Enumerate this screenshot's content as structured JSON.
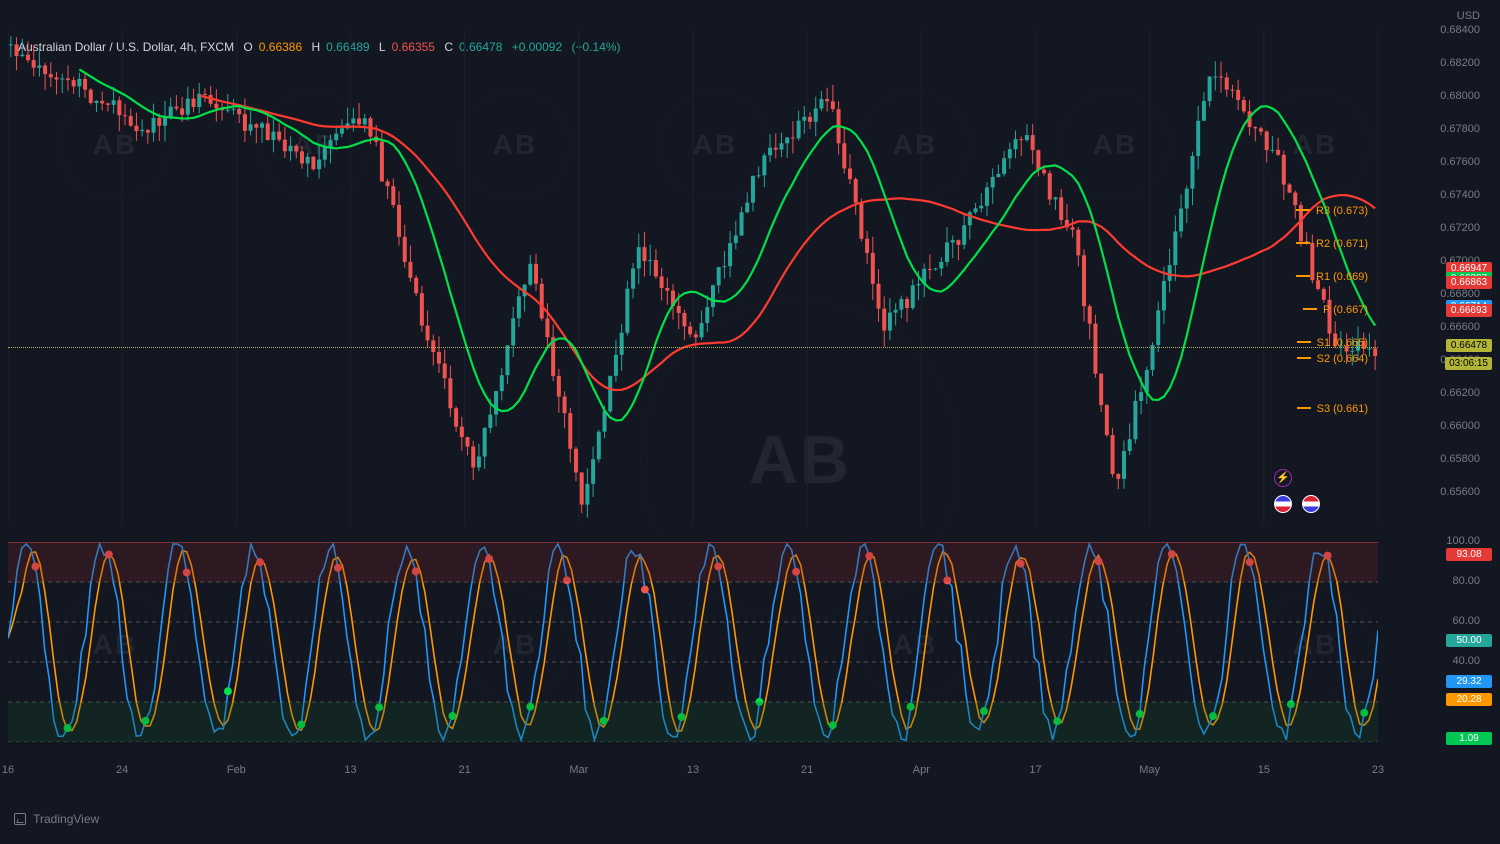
{
  "header": {
    "symbol_title": "Australian Dollar / U.S. Dollar, 4h, FXCM",
    "o_label": "O",
    "o_value": "0.66386",
    "h_label": "H",
    "h_value": "0.66489",
    "l_label": "L",
    "l_value": "0.66355",
    "c_label": "C",
    "c_value": "0.66478",
    "chg_value": "+0.00092",
    "chg_pct": "(+0.14%)"
  },
  "watermark": {
    "text": "TradingView"
  },
  "background_color": "#131722",
  "watermark_badge_text": "AB",
  "price_chart": {
    "type": "candlestick",
    "ylim": [
      0.654,
      0.684
    ],
    "ytick_step": 0.002,
    "currency": "USD",
    "grid_color": "#1c2030",
    "up_color": "#26a69a",
    "down_color": "#ef5350",
    "wick_up_color": "#26a69a",
    "wick_down_color": "#ef5350",
    "ma1_color": "#ff3b30",
    "ma1_width": 2.2,
    "ma2_color": "#00e04a",
    "ma2_width": 2.2,
    "yellow_line_value": 0.66478,
    "yellow_line_color": "#b2b536",
    "countdown": "03:06:15",
    "bar_seed": 1234567,
    "bar_count": 240,
    "price_tags": [
      {
        "value": "0.66947",
        "bg": "#e53935"
      },
      {
        "value": "0.66887",
        "bg": "#00c853"
      },
      {
        "value": "0.66863",
        "bg": "#e53935"
      },
      {
        "value": "0.66714",
        "bg": "#ff9800"
      },
      {
        "value": "0.66714",
        "bg": "#2196f3"
      },
      {
        "value": "0.66693",
        "bg": "#e53935"
      },
      {
        "value": "0.66478",
        "bg": "#b2b536",
        "text_color": "#000"
      }
    ],
    "pivots": [
      {
        "label": "R3 (0.673)",
        "value": 0.673
      },
      {
        "label": "R2 (0.671)",
        "value": 0.671
      },
      {
        "label": "R1 (0.669)",
        "value": 0.669
      },
      {
        "label": "P (0.667)",
        "value": 0.667
      },
      {
        "label": "S1 (0.665)",
        "value": 0.665
      },
      {
        "label": "S2 (0.664)",
        "value": 0.664
      },
      {
        "label": "S3 (0.661)",
        "value": 0.661
      }
    ],
    "pivot_color": "#ff9800"
  },
  "time_axis": {
    "labels": [
      "16",
      "24",
      "Feb",
      "13",
      "21",
      "Mar",
      "13",
      "21",
      "Apr",
      "17",
      "May",
      "15",
      "23"
    ]
  },
  "oscillator": {
    "type": "stochastic",
    "ylim": [
      0,
      100
    ],
    "ytick_step": 20,
    "overbought": 80,
    "oversold": 20,
    "ob_bg": "rgba(120,30,30,0.25)",
    "os_bg": "rgba(20,80,40,0.25)",
    "k_color": "#2196f3",
    "d_color": "#ff9800",
    "line_width": 1.6,
    "hline_color": "#555",
    "midline_value": 50,
    "midline_color": "#26a69a",
    "topline_color": "#ef5350",
    "signal_up_color": "#00e04a",
    "signal_down_color": "#ef5350",
    "signal_radius": 4,
    "osc_tags": [
      {
        "value": "93.08",
        "bg": "#e53935"
      },
      {
        "value": "50.00",
        "bg": "#26a69a"
      },
      {
        "value": "29.32",
        "bg": "#2196f3"
      },
      {
        "value": "20.28",
        "bg": "#ff9800"
      },
      {
        "value": "1.09",
        "bg": "#00c853"
      }
    ],
    "seed": 777,
    "cycles": 18
  },
  "icons": {
    "bolt_color": "#9c27b0",
    "flags": [
      {
        "bg": "linear-gradient(180deg,#3c3cde 33%,#fff 33%,#fff 66%,#d23 66%)"
      },
      {
        "bg": "linear-gradient(180deg,#d23 33%,#fff 33%,#fff 66%,#3c3cde 66%)"
      }
    ]
  }
}
